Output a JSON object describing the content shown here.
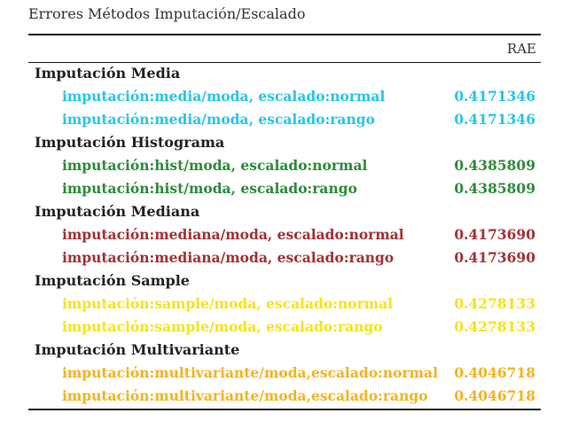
{
  "caption": "Errores Métodos Imputación/Escalado",
  "column_header": "RAE",
  "groups": [
    {
      "title": "Imputación Media",
      "color": "#29c5e6",
      "rows": [
        {
          "label": "imputación:media/moda, escalado:normal",
          "value": "0.4171346"
        },
        {
          "label": "imputación:media/moda, escalado:rango",
          "value": "0.4171346"
        }
      ]
    },
    {
      "title": "Imputación Histograma",
      "color": "#2e8b39",
      "rows": [
        {
          "label": "imputación:hist/moda, escalado:normal",
          "value": "0.4385809"
        },
        {
          "label": "imputación:hist/moda, escalado:rango",
          "value": "0.4385809"
        }
      ]
    },
    {
      "title": "Imputación Mediana",
      "color": "#a23234",
      "rows": [
        {
          "label": "imputación:mediana/moda, escalado:normal",
          "value": "0.4173690"
        },
        {
          "label": "imputación:mediana/moda, escalado:rango",
          "value": "0.4173690"
        }
      ]
    },
    {
      "title": "Imputación Sample",
      "color": "#f5e41a",
      "rows": [
        {
          "label": "imputación:sample/moda, escalado:normal",
          "value": "0.4278133"
        },
        {
          "label": "imputación:sample/moda, escalado:rango",
          "value": "0.4278133"
        }
      ]
    },
    {
      "title": "Imputación Multivariante",
      "color": "#f5b31f",
      "rows": [
        {
          "label": "imputación:multivariante/moda,escalado:normal",
          "value": "0.4046718"
        },
        {
          "label": "imputación:multivariante/moda,escalado:rango",
          "value": "0.4046718"
        }
      ]
    }
  ]
}
